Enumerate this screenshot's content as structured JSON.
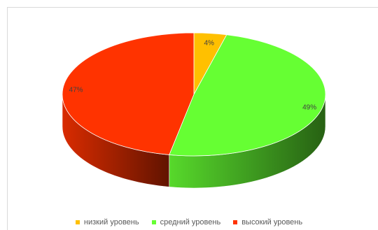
{
  "chart_data": {
    "type": "pie",
    "title": "",
    "style": "3d",
    "legend_position": "bottom",
    "slices": [
      {
        "label": "низкий уровень",
        "value": 4,
        "display": "4%",
        "color": "#ffc000"
      },
      {
        "label": "средний уровень",
        "value": 49,
        "display": "49%",
        "color": "#66ff33"
      },
      {
        "label": "высокий уровень",
        "value": 47,
        "display": "47%",
        "color": "#ff3300"
      }
    ]
  }
}
